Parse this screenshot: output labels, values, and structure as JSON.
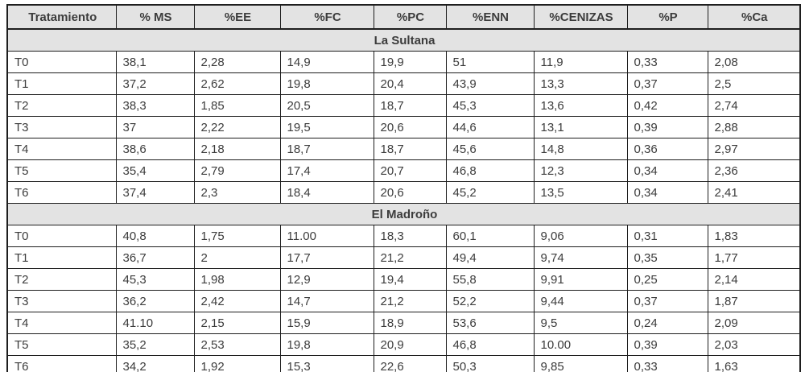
{
  "chart_data": {
    "type": "table",
    "columns": [
      "Tratamiento",
      "% MS",
      "%EE",
      "%FC",
      "%PC",
      "%ENN",
      "%CENIZAS",
      "%P",
      "%Ca"
    ],
    "sections": [
      {
        "title": "La Sultana",
        "rows": [
          [
            "T0",
            "38,1",
            "2,28",
            "14,9",
            "19,9",
            "51",
            "11,9",
            "0,33",
            "2,08"
          ],
          [
            "T1",
            "37,2",
            "2,62",
            "19,8",
            "20,4",
            "43,9",
            "13,3",
            "0,37",
            "2,5"
          ],
          [
            "T2",
            "38,3",
            "1,85",
            "20,5",
            "18,7",
            "45,3",
            "13,6",
            "0,42",
            "2,74"
          ],
          [
            "T3",
            "37",
            "2,22",
            "19,5",
            "20,6",
            "44,6",
            "13,1",
            "0,39",
            "2,88"
          ],
          [
            "T4",
            "38,6",
            "2,18",
            "18,7",
            "18,7",
            "45,6",
            "14,8",
            "0,36",
            "2,97"
          ],
          [
            "T5",
            "35,4",
            "2,79",
            "17,4",
            "20,7",
            "46,8",
            "12,3",
            "0,34",
            "2,36"
          ],
          [
            "T6",
            "37,4",
            "2,3",
            "18,4",
            "20,6",
            "45,2",
            "13,5",
            "0,34",
            "2,41"
          ]
        ]
      },
      {
        "title": "El Madroño",
        "rows": [
          [
            "T0",
            "40,8",
            "1,75",
            "11.00",
            "18,3",
            "60,1",
            "9,06",
            "0,31",
            "1,83"
          ],
          [
            "T1",
            "36,7",
            "2",
            "17,7",
            "21,2",
            "49,4",
            "9,74",
            "0,35",
            "1,77"
          ],
          [
            "T2",
            "45,3",
            "1,98",
            "12,9",
            "19,4",
            "55,8",
            "9,91",
            "0,25",
            "2,14"
          ],
          [
            "T3",
            "36,2",
            "2,42",
            "14,7",
            "21,2",
            "52,2",
            "9,44",
            "0,37",
            "1,87"
          ],
          [
            "T4",
            "41.10",
            "2,15",
            "15,9",
            "18,9",
            "53,6",
            "9,5",
            "0,24",
            "2,09"
          ],
          [
            "T5",
            "35,2",
            "2,53",
            "19,8",
            "20,9",
            "46,8",
            "10.00",
            "0,39",
            "2,03"
          ],
          [
            "T6",
            "34,2",
            "1,92",
            "15,3",
            "22,6",
            "50,3",
            "9,85",
            "0,33",
            "1,63"
          ]
        ]
      }
    ],
    "title": "",
    "legend": [],
    "notes": "Two-site proximate composition table; decimal commas as shown in source"
  },
  "colors": {
    "header_bg": "#e3e3e3",
    "section_bg": "#e3e3e3",
    "border": "#1e1e1e",
    "text": "#3c3c3c",
    "row_bg": "#ffffff"
  }
}
